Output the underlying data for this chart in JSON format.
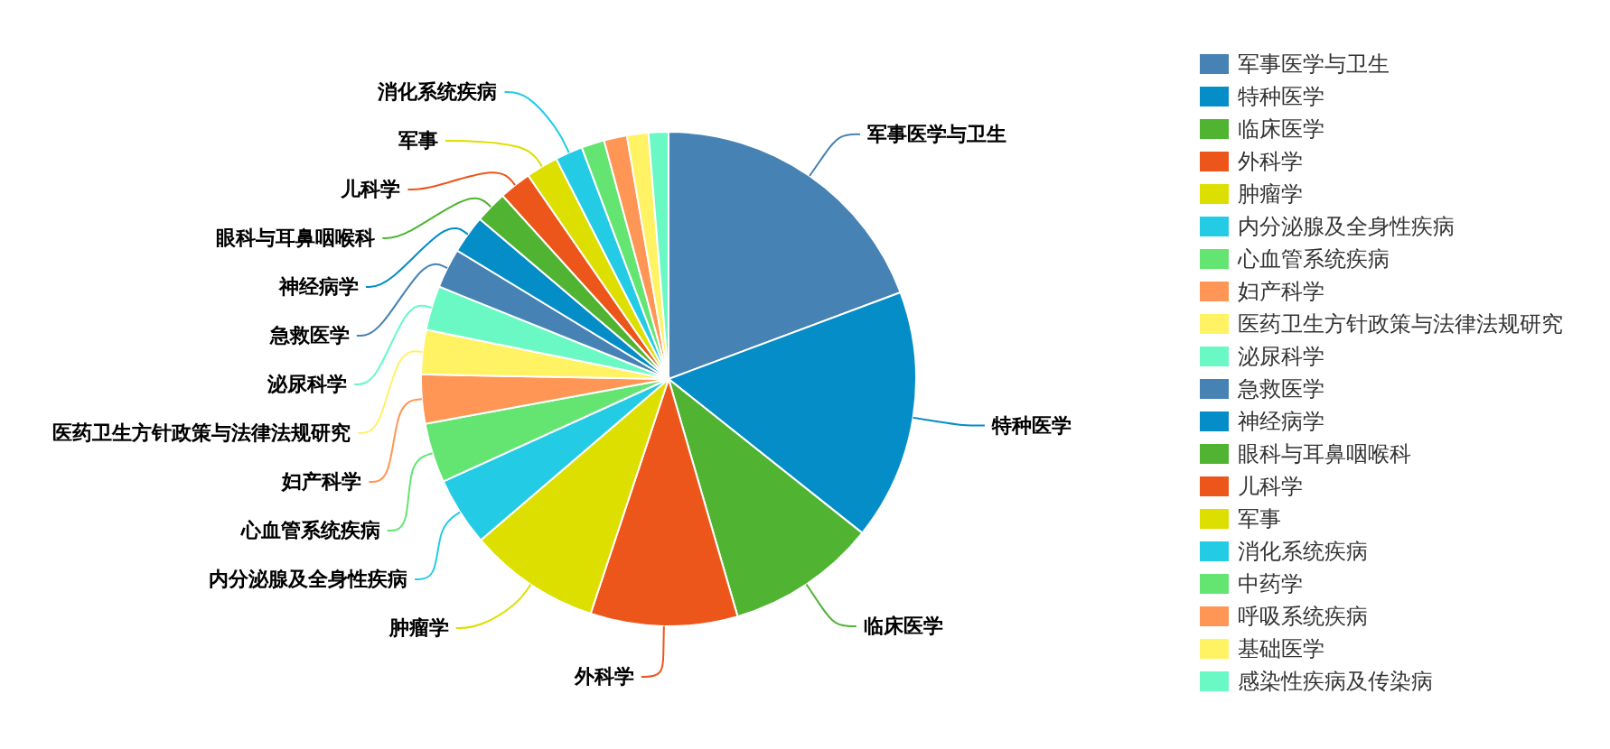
{
  "chart_data": {
    "type": "pie",
    "categories": [
      "军事医学与卫生",
      "特种医学",
      "临床医学",
      "外科学",
      "肿瘤学",
      "内分泌腺及全身性疾病",
      "心血管系统疾病",
      "妇产科学",
      "医药卫生方针政策与法律法规研究",
      "泌尿科学",
      "急救医学",
      "神经病学",
      "眼科与耳鼻咽喉科",
      "儿科学",
      "军事",
      "消化系统疾病",
      "中药学",
      "呼吸系统疾病",
      "基础医学",
      "感染性疾病及传染病"
    ],
    "values": [
      19.3,
      16.4,
      9.8,
      9.6,
      8.6,
      4.5,
      3.9,
      3.2,
      2.9,
      2.9,
      2.6,
      2.5,
      2.1,
      2.1,
      2.1,
      1.8,
      1.5,
      1.5,
      1.4,
      1.3
    ],
    "colors": [
      "#4682b4",
      "#058dc7",
      "#50b432",
      "#ed561b",
      "#dddf00",
      "#24cbe5",
      "#64e572",
      "#ff9655",
      "#fff263",
      "#6af9c4",
      "#4682b4",
      "#058dc7",
      "#50b432",
      "#ed561b",
      "#dddf00",
      "#24cbe5",
      "#64e572",
      "#ff9655",
      "#fff263",
      "#6af9c4"
    ],
    "legend": "right"
  }
}
